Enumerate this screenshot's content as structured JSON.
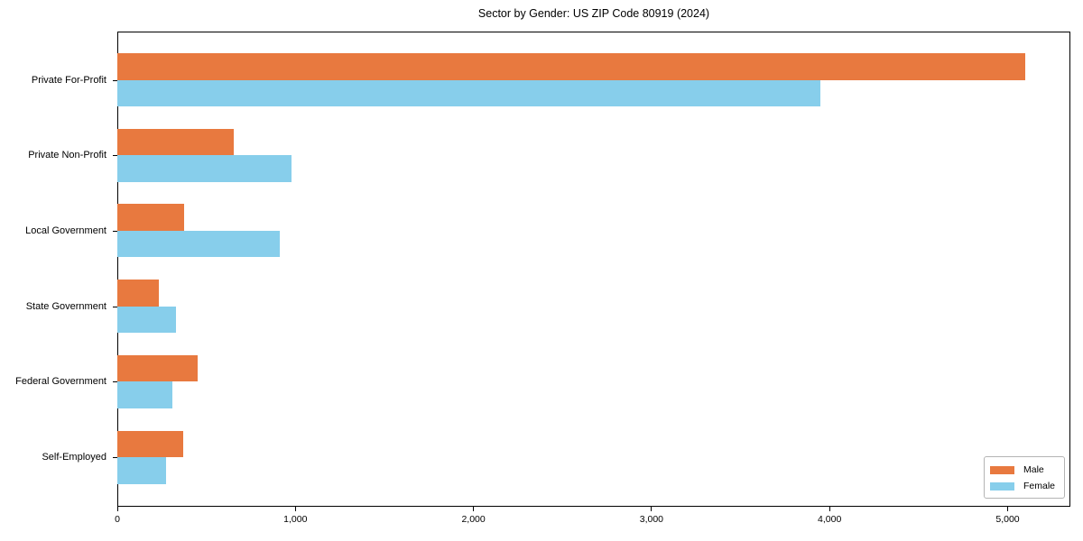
{
  "chart_data": {
    "type": "bar",
    "orientation": "horizontal",
    "title": "Sector by Gender: US ZIP Code 80919 (2024)",
    "categories": [
      "Private For-Profit",
      "Private Non-Profit",
      "Local Government",
      "State Government",
      "Federal Government",
      "Self-Employed"
    ],
    "series": [
      {
        "name": "Male",
        "color": "#E8793F",
        "values": [
          5100,
          655,
          375,
          235,
          450,
          370
        ]
      },
      {
        "name": "Female",
        "color": "#87CEEB",
        "values": [
          3950,
          980,
          910,
          330,
          310,
          275
        ]
      }
    ],
    "xlabel": "",
    "ylabel": "",
    "xlim": [
      0,
      5355
    ],
    "xticks": [
      0,
      1000,
      2000,
      3000,
      4000,
      5000
    ],
    "xtick_labels": [
      "0",
      "1,000",
      "2,000",
      "3,000",
      "4,000",
      "5,000"
    ],
    "grid": false,
    "legend": {
      "position": "lower right",
      "entries": [
        "Male",
        "Female"
      ]
    }
  },
  "colors": {
    "frame": "#000000",
    "background": "#ffffff",
    "legend_border": "#b4b4b4"
  }
}
